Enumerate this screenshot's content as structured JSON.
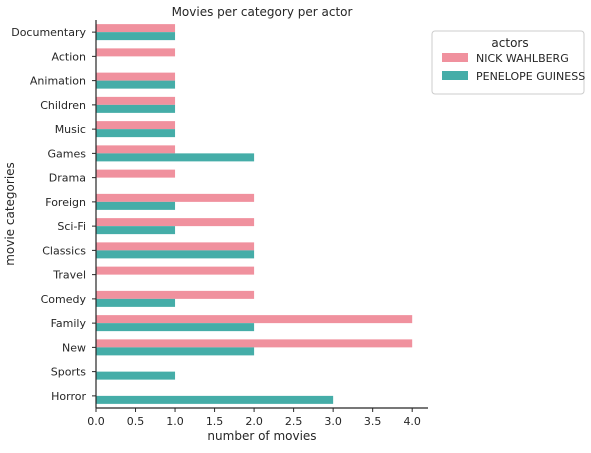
{
  "chart_data": {
    "type": "bar",
    "orientation": "horizontal",
    "title": "Movies per category per actor",
    "xlabel": "number of movies",
    "ylabel": "movie categories",
    "xlim": [
      0,
      4.2
    ],
    "xticks": [
      "0.0",
      "0.5",
      "1.0",
      "1.5",
      "2.0",
      "2.5",
      "3.0",
      "3.5",
      "4.0"
    ],
    "categories": [
      "Documentary",
      "Action",
      "Animation",
      "Children",
      "Music",
      "Games",
      "Drama",
      "Foreign",
      "Sci-Fi",
      "Classics",
      "Travel",
      "Comedy",
      "Family",
      "New",
      "Sports",
      "Horror"
    ],
    "series": [
      {
        "name": "NICK WAHLBERG",
        "color": "#f0919e",
        "values": [
          1,
          1,
          1,
          1,
          1,
          1,
          1,
          2,
          2,
          2,
          2,
          2,
          4,
          4,
          null,
          null
        ]
      },
      {
        "name": "PENELOPE GUINESS",
        "color": "#45ada8",
        "values": [
          1,
          null,
          1,
          1,
          1,
          2,
          null,
          1,
          1,
          2,
          null,
          1,
          2,
          2,
          1,
          3
        ]
      }
    ],
    "legend": {
      "title": "actors",
      "placement": "outside-right-top"
    },
    "grid": false
  }
}
